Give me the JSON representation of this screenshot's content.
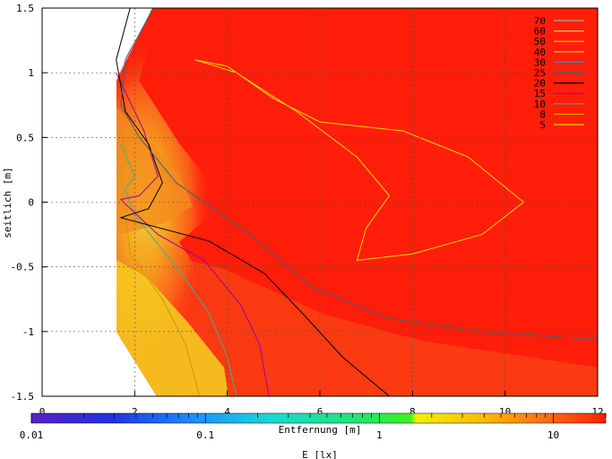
{
  "chart_data": {
    "type": "heatmap",
    "title": "",
    "xlabel": "Entfernung [m]",
    "ylabel": "seitlich [m]",
    "xlim": [
      0,
      12
    ],
    "ylim": [
      -1.5,
      1.5
    ],
    "x_ticks": [
      "0",
      "2",
      "4",
      "6",
      "8",
      "10",
      "12"
    ],
    "y_ticks": [
      "1.5",
      "1",
      "0.5",
      "0",
      "-0.5",
      "-1",
      "-1.5"
    ],
    "grid": true,
    "legend_position": "top-right",
    "colorbar": {
      "label": "E [lx]",
      "scale": "log",
      "range": [
        0.01,
        20
      ],
      "tick_labels": [
        "0.01",
        "0.1",
        "1",
        "10"
      ],
      "tick_values": [
        0.01,
        0.1,
        1,
        10
      ]
    },
    "contours": [
      {
        "name": "70",
        "color": "#a0a0a0"
      },
      {
        "name": "60",
        "color": "#e0c040"
      },
      {
        "name": "50",
        "color": "#f5d800"
      },
      {
        "name": "40",
        "color": "#ffd23c"
      },
      {
        "name": "30",
        "color": "#5a78b4"
      },
      {
        "name": "25",
        "color": "#3c6478"
      },
      {
        "name": "20",
        "color": "#000000"
      },
      {
        "name": "15",
        "color": "#a000a0"
      },
      {
        "name": "10",
        "color": "#3cb48c"
      },
      {
        "name": "8",
        "color": "#c8a000"
      },
      {
        "name": "5",
        "color": "#e6c800"
      }
    ],
    "contour_lines": {
      "50": [
        [
          3.3,
          1.1
        ],
        [
          4.2,
          1.0
        ],
        [
          5.5,
          0.7
        ],
        [
          6.8,
          0.35
        ],
        [
          7.5,
          0.05
        ],
        [
          7.0,
          -0.2
        ],
        [
          6.8,
          -0.45
        ],
        [
          8.0,
          -0.4
        ],
        [
          9.5,
          -0.25
        ],
        [
          10.4,
          0.0
        ],
        [
          9.2,
          0.35
        ],
        [
          7.8,
          0.55
        ],
        [
          6.0,
          0.62
        ],
        [
          5.0,
          0.8
        ],
        [
          4.0,
          1.05
        ],
        [
          3.3,
          1.1
        ]
      ],
      "25": [
        [
          2.4,
          1.5
        ],
        [
          1.8,
          1.1
        ],
        [
          1.7,
          0.75
        ],
        [
          2.1,
          0.5
        ],
        [
          2.9,
          0.15
        ],
        [
          4.5,
          -0.25
        ],
        [
          5.8,
          -0.65
        ],
        [
          7.5,
          -0.9
        ],
        [
          9.5,
          -1.0
        ],
        [
          11.5,
          -1.05
        ],
        [
          12,
          -1.05
        ]
      ],
      "20": [
        [
          1.9,
          1.5
        ],
        [
          1.6,
          1.1
        ],
        [
          1.8,
          0.7
        ],
        [
          2.3,
          0.45
        ],
        [
          2.6,
          0.15
        ],
        [
          2.3,
          -0.05
        ],
        [
          1.7,
          -0.12
        ],
        [
          3.6,
          -0.3
        ],
        [
          4.8,
          -0.55
        ],
        [
          5.6,
          -0.85
        ],
        [
          6.5,
          -1.2
        ],
        [
          7.5,
          -1.5
        ]
      ],
      "15": [
        [
          1.6,
          1.0
        ],
        [
          2.2,
          0.55
        ],
        [
          2.5,
          0.2
        ],
        [
          2.1,
          0.05
        ],
        [
          1.7,
          0.02
        ],
        [
          2.5,
          -0.25
        ],
        [
          3.5,
          -0.45
        ],
        [
          4.3,
          -0.8
        ],
        [
          4.7,
          -1.1
        ],
        [
          4.9,
          -1.5
        ]
      ],
      "10": [
        [
          1.7,
          0.45
        ],
        [
          2.0,
          0.2
        ],
        [
          1.8,
          0.1
        ],
        [
          2.0,
          -0.1
        ],
        [
          2.9,
          -0.5
        ],
        [
          3.6,
          -0.85
        ],
        [
          4.0,
          -1.2
        ],
        [
          4.2,
          -1.5
        ]
      ],
      "8": [
        [
          1.65,
          0.6
        ],
        [
          1.85,
          0.35
        ],
        [
          1.7,
          0.25
        ],
        [
          1.9,
          -0.4
        ],
        [
          2.6,
          -0.75
        ],
        [
          3.1,
          -1.1
        ],
        [
          3.4,
          -1.5
        ]
      ],
      "5": [
        [
          1.7,
          -0.55
        ],
        [
          2.1,
          -0.9
        ],
        [
          2.4,
          -1.2
        ],
        [
          2.6,
          -1.5
        ]
      ]
    }
  }
}
